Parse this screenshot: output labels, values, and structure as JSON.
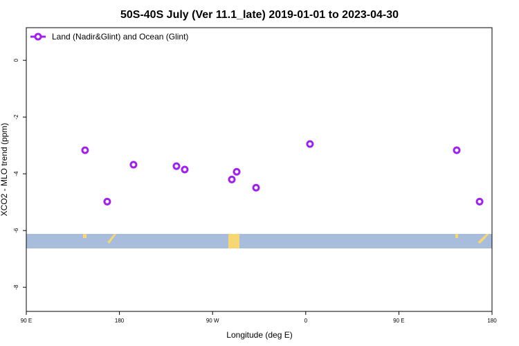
{
  "chart_data": {
    "type": "scatter",
    "title": "50S-40S July (Ver 11.1_late)   2019-01-01 to 2023-04-30",
    "xlabel": "Longitude (deg E)",
    "ylabel": "XCO2 - MLO trend (ppm)",
    "xlim": [
      90,
      540
    ],
    "ylim": [
      1.15,
      -8.85
    ],
    "xticks": [
      {
        "value": 90,
        "label": "90 E"
      },
      {
        "value": 180,
        "label": "180"
      },
      {
        "value": 270,
        "label": "90 W"
      },
      {
        "value": 360,
        "label": "0"
      },
      {
        "value": 450,
        "label": "90 E"
      },
      {
        "value": 540,
        "label": "180"
      }
    ],
    "yticks": [
      0,
      -2,
      -4,
      -6,
      -8
    ],
    "legend": "upper left",
    "series": [
      {
        "name": "Land (Nadir&Glint) and Ocean (Glint)",
        "color": "#a020f0",
        "x": [
          146.8,
          168.2,
          193.6,
          235.1,
          243.1,
          288.6,
          293.3,
          312.0,
          364.1,
          505.9,
          528.0
        ],
        "values": [
          -3.17,
          -4.98,
          -3.68,
          -3.73,
          -3.85,
          -4.2,
          -3.93,
          -4.49,
          -2.95,
          -3.17,
          -4.98
        ]
      }
    ]
  }
}
